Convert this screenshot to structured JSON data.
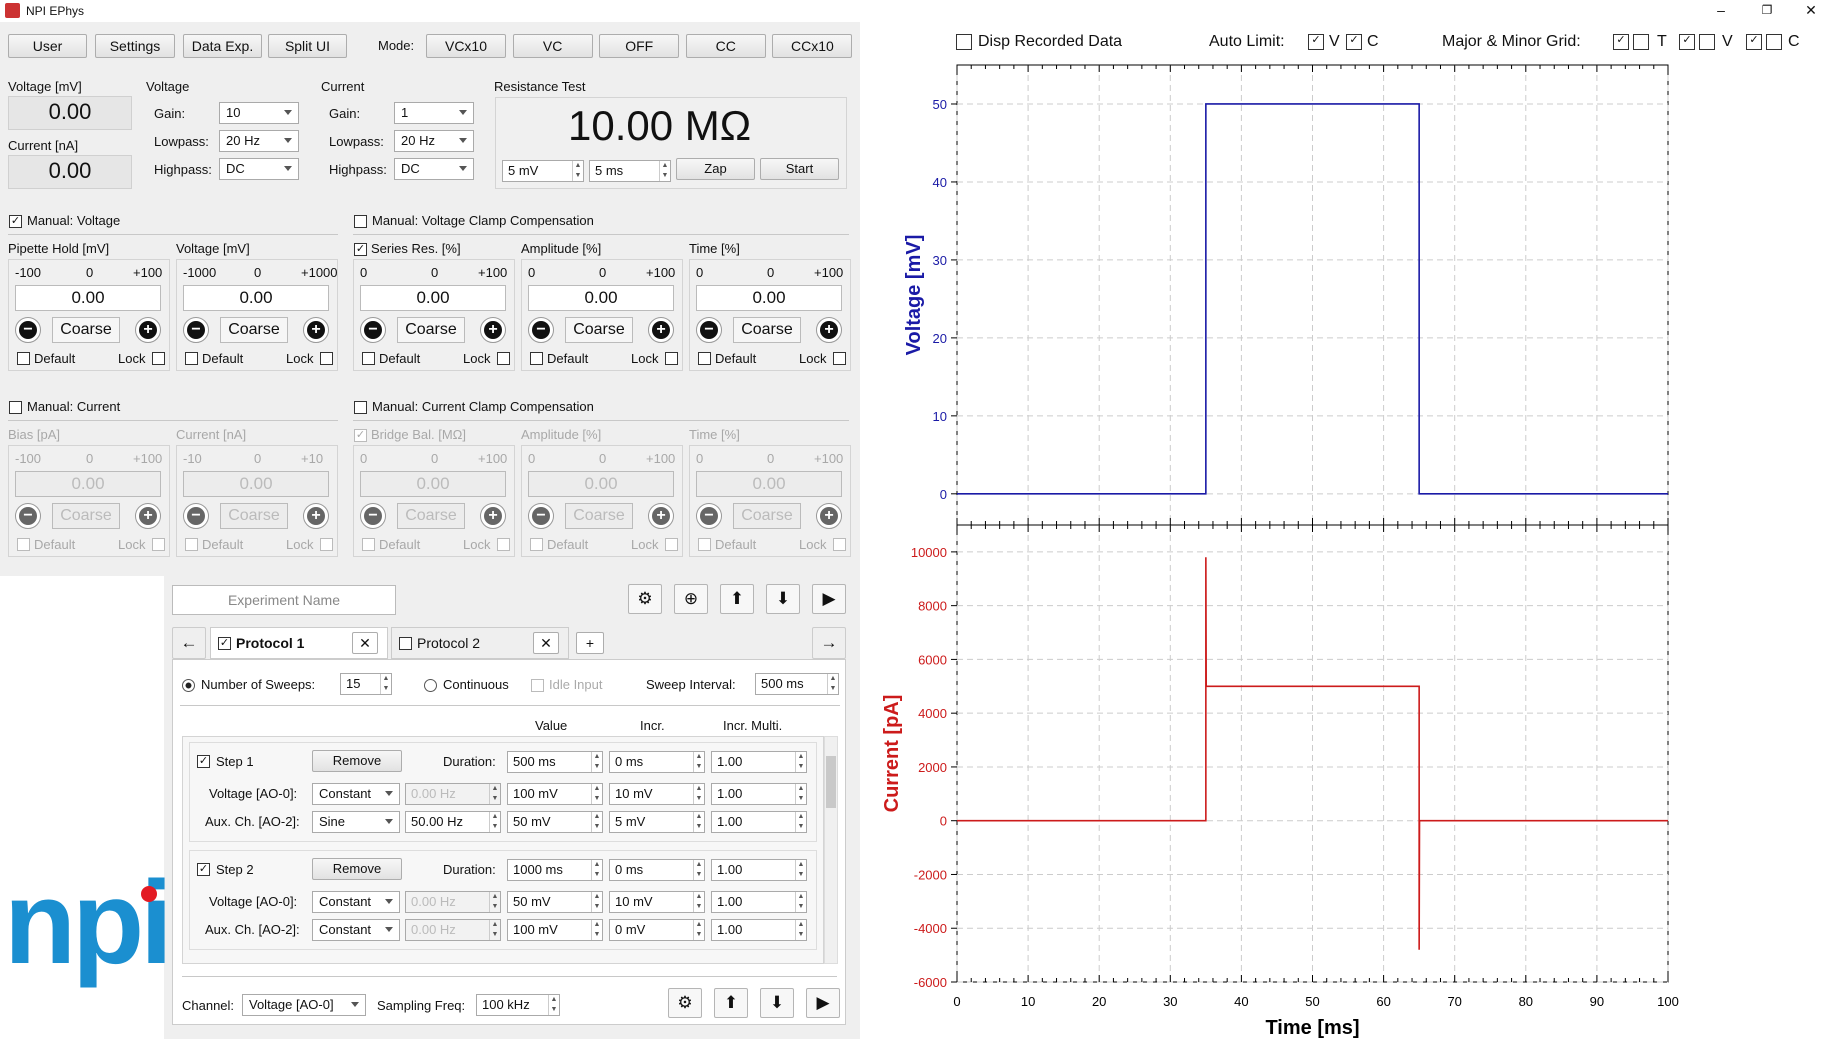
{
  "window": {
    "title": "NPI EPhys",
    "minimize": "–",
    "restore": "❐",
    "close": "✕"
  },
  "toolbar": {
    "buttons": [
      "User",
      "Settings",
      "Data Exp.",
      "Split UI"
    ],
    "mode_label": "Mode:",
    "modes": [
      "VCx10",
      "VC",
      "OFF",
      "CC",
      "CCx10"
    ]
  },
  "readouts": {
    "voltage_label": "Voltage [mV]",
    "voltage_value": "0.00",
    "current_label": "Current [nA]",
    "current_value": "0.00"
  },
  "voltage_filters": {
    "title": "Voltage",
    "gain_label": "Gain:",
    "gain": "10",
    "lowpass_label": "Lowpass:",
    "lowpass": "20 Hz",
    "highpass_label": "Highpass:",
    "highpass": "DC"
  },
  "current_filters": {
    "title": "Current",
    "gain_label": "Gain:",
    "gain": "1",
    "lowpass_label": "Lowpass:",
    "lowpass": "20 Hz",
    "highpass_label": "Highpass:",
    "highpass": "DC"
  },
  "resistance": {
    "title": "Resistance Test",
    "value": "10.00 MΩ",
    "amp": "5 mV",
    "dur": "5 ms",
    "zap": "Zap",
    "start": "Start"
  },
  "manual_voltage": {
    "label": "Manual: Voltage",
    "checked": "✓",
    "controls": [
      {
        "title": "Pipette Hold [mV]",
        "min": "-100",
        "mid": "0",
        "max": "+100",
        "value": "0.00",
        "coarse": "Coarse",
        "default": "Default",
        "lock": "Lock",
        "check": ""
      },
      {
        "title": "Voltage [mV]",
        "min": "-1000",
        "mid": "0",
        "max": "+1000",
        "value": "0.00",
        "coarse": "Coarse",
        "default": "Default",
        "lock": "Lock",
        "check": ""
      }
    ]
  },
  "vc_comp": {
    "label": "Manual: Voltage Clamp Compensation",
    "checked": "",
    "controls": [
      {
        "title": "Series Res. [%]",
        "min": "0",
        "mid": "0",
        "max": "+100",
        "value": "0.00",
        "coarse": "Coarse",
        "default": "Default",
        "lock": "Lock",
        "check": "✓"
      },
      {
        "title": "Amplitude [%]",
        "min": "0",
        "mid": "0",
        "max": "+100",
        "value": "0.00",
        "coarse": "Coarse",
        "default": "Default",
        "lock": "Lock",
        "check": ""
      },
      {
        "title": "Time [%]",
        "min": "0",
        "mid": "0",
        "max": "+100",
        "value": "0.00",
        "coarse": "Coarse",
        "default": "Default",
        "lock": "Lock",
        "check": ""
      }
    ]
  },
  "manual_current": {
    "label": "Manual: Current",
    "checked": "",
    "controls": [
      {
        "title": "Bias [pA]",
        "min": "-100",
        "mid": "0",
        "max": "+100",
        "value": "0.00",
        "coarse": "Coarse",
        "default": "Default",
        "lock": "Lock",
        "check": ""
      },
      {
        "title": "Current [nA]",
        "min": "-10",
        "mid": "0",
        "max": "+10",
        "value": "0.00",
        "coarse": "Coarse",
        "default": "Default",
        "lock": "Lock",
        "check": ""
      }
    ]
  },
  "cc_comp": {
    "label": "Manual: Current Clamp Compensation",
    "checked": "",
    "controls": [
      {
        "title": "Bridge Bal. [MΩ]",
        "min": "0",
        "mid": "0",
        "max": "+100",
        "value": "0.00",
        "coarse": "Coarse",
        "default": "Default",
        "lock": "Lock",
        "check": "✓"
      },
      {
        "title": "Amplitude [%]",
        "min": "0",
        "mid": "0",
        "max": "+100",
        "value": "0.00",
        "coarse": "Coarse",
        "default": "Default",
        "lock": "Lock",
        "check": ""
      },
      {
        "title": "Time [%]",
        "min": "0",
        "mid": "0",
        "max": "+100",
        "value": "0.00",
        "coarse": "Coarse",
        "default": "Default",
        "lock": "Lock",
        "check": ""
      }
    ]
  },
  "brand": {
    "text": "npi",
    "dot_color": "#e31b23",
    "text_color": "#1b8fd0"
  },
  "experiment": {
    "placeholder": "Experiment Name",
    "icons": [
      "gear-icon",
      "add-circle-icon",
      "upload-icon",
      "download-icon",
      "play-icon"
    ]
  },
  "protocols": {
    "tabs": [
      {
        "label": "Protocol 1",
        "checked": "✓"
      },
      {
        "label": "Protocol 2",
        "checked": ""
      }
    ],
    "add": "+",
    "close": "✕",
    "left": "←",
    "right": "→"
  },
  "sweeps": {
    "num_label": "Number of Sweeps:",
    "num": "15",
    "continuous": "Continuous",
    "idle": "Idle Input",
    "interval_label": "Sweep Interval:",
    "interval": "500 ms"
  },
  "step_headers": {
    "value": "Value",
    "incr": "Incr.",
    "mult": "Incr. Multi."
  },
  "steps": [
    {
      "label": "Step 1",
      "checked": "✓",
      "remove": "Remove",
      "duration_label": "Duration:",
      "duration": "500 ms",
      "duration_incr": "0 ms",
      "duration_mult": "1.00",
      "v_label": "Voltage [AO-0]:",
      "v_mode": "Constant",
      "v_freq": "0.00 Hz",
      "v_val": "100 mV",
      "v_incr": "10 mV",
      "v_mult": "1.00",
      "a_label": "Aux. Ch. [AO-2]:",
      "a_mode": "Sine",
      "a_freq": "50.00 Hz",
      "a_val": "50 mV",
      "a_incr": "5 mV",
      "a_mult": "1.00"
    },
    {
      "label": "Step 2",
      "checked": "✓",
      "remove": "Remove",
      "duration_label": "Duration:",
      "duration": "1000 ms",
      "duration_incr": "0 ms",
      "duration_mult": "1.00",
      "v_label": "Voltage [AO-0]:",
      "v_mode": "Constant",
      "v_freq": "0.00 Hz",
      "v_val": "50 mV",
      "v_incr": "10 mV",
      "v_mult": "1.00",
      "a_label": "Aux. Ch. [AO-2]:",
      "a_mode": "Constant",
      "a_freq": "0.00 Hz",
      "a_val": "100 mV",
      "a_incr": "0 mV",
      "a_mult": "1.00"
    }
  ],
  "bottom": {
    "channel_label": "Channel:",
    "channel": "Voltage [AO-0]",
    "freq_label": "Sampling Freq:",
    "freq": "100 kHz"
  },
  "chart_header": {
    "disp": "Disp Recorded Data",
    "disp_checked": "",
    "auto": "Auto Limit:",
    "auto_v": "✓",
    "auto_v_label": "V",
    "auto_c": "✓",
    "auto_c_label": "C",
    "grid": "Major & Minor Grid:",
    "grid_t_major": "✓",
    "grid_t_minor": "",
    "grid_t_label": "T",
    "grid_v_major": "✓",
    "grid_v_minor": "",
    "grid_v_label": "V",
    "grid_c_major": "✓",
    "grid_c_minor": "",
    "grid_c_label": "C"
  },
  "chart_data": [
    {
      "type": "line",
      "ylabel": "Voltage [mV]",
      "color": "#1a1aa6",
      "ylim": [
        -4,
        55
      ],
      "yticks": [
        0,
        10,
        20,
        30,
        40,
        50
      ],
      "xlim": [
        0,
        100
      ],
      "grid": true,
      "series": [
        {
          "x": [
            0,
            35,
            35,
            65,
            65,
            100
          ],
          "values": [
            0,
            0,
            50,
            50,
            0,
            0
          ]
        }
      ]
    },
    {
      "type": "line",
      "ylabel": "Current [pA]",
      "xlabel": "Time [ms]",
      "color": "#cc1b1b",
      "ylim": [
        -6000,
        11000
      ],
      "yticks": [
        -6000,
        -4000,
        -2000,
        0,
        2000,
        4000,
        6000,
        8000,
        10000
      ],
      "xlim": [
        0,
        100
      ],
      "xticks": [
        0,
        10,
        20,
        30,
        40,
        50,
        60,
        70,
        80,
        90,
        100
      ],
      "grid": true,
      "series": [
        {
          "x": [
            0,
            35,
            35,
            35.05,
            65,
            65,
            65.05,
            100
          ],
          "values": [
            0,
            0,
            9800,
            5000,
            5000,
            -4800,
            0,
            0
          ]
        }
      ]
    }
  ]
}
